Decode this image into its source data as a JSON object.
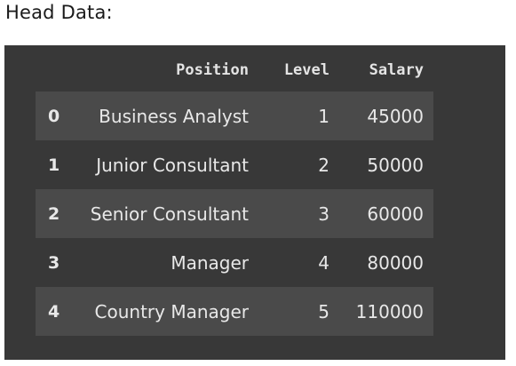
{
  "heading": "Head Data:",
  "table": {
    "columns": [
      "Position",
      "Level",
      "Salary"
    ],
    "rows": [
      {
        "index": "0",
        "position": "Business Analyst",
        "level": "1",
        "salary": "45000"
      },
      {
        "index": "1",
        "position": "Junior Consultant",
        "level": "2",
        "salary": "50000"
      },
      {
        "index": "2",
        "position": "Senior Consultant",
        "level": "3",
        "salary": "60000"
      },
      {
        "index": "3",
        "position": "Manager",
        "level": "4",
        "salary": "80000"
      },
      {
        "index": "4",
        "position": "Country Manager",
        "level": "5",
        "salary": "110000"
      }
    ]
  },
  "colors": {
    "panel_background": "#383838",
    "striped_row_background": "#4a4a4a",
    "text": "#e8e8e8"
  }
}
